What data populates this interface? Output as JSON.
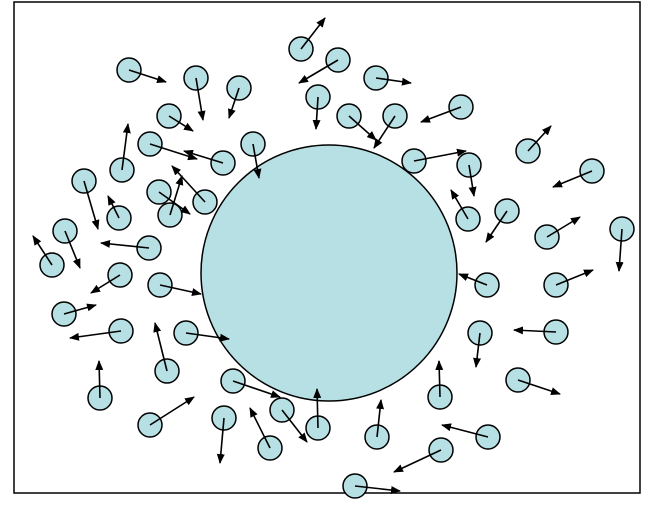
{
  "colors": {
    "background": "#ffffff",
    "frame": "#000000",
    "particle_fill": "#b7e0e4",
    "particle_stroke": "#000000",
    "arrow": "#000000"
  },
  "icons": {
    "arrow": "arrow-icon",
    "particle": "circle-icon"
  }
}
